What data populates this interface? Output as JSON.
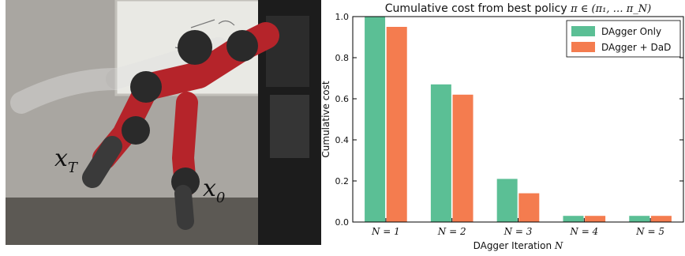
{
  "photo": {
    "label_start": "x",
    "label_start_sub": "T",
    "label_end": "x",
    "label_end_sub": "0"
  },
  "colors": {
    "dagger_only": "#5bbf95",
    "dagger_dad": "#f47c4f"
  },
  "chart_data": {
    "type": "bar",
    "title_text": "Cumulative cost from best policy ",
    "title_math": "π ∈ (π₁, … π_N)",
    "xlabel_text": "DAgger Iteration ",
    "xlabel_math": "N",
    "ylabel": "Cumulative cost",
    "categories": [
      "N = 1",
      "N = 2",
      "N = 3",
      "N = 4",
      "N = 5"
    ],
    "ylim": [
      0,
      1.0
    ],
    "yticks": [
      "0.0",
      "0.2",
      "0.4",
      "0.6",
      "0.8",
      "1.0"
    ],
    "grid": false,
    "legend_position": "top-right",
    "series": [
      {
        "name": "DAgger Only",
        "values": [
          1.0,
          0.67,
          0.21,
          0.03,
          0.03
        ]
      },
      {
        "name": "DAgger + DaD",
        "values": [
          0.95,
          0.62,
          0.14,
          0.03,
          0.03
        ]
      }
    ]
  }
}
